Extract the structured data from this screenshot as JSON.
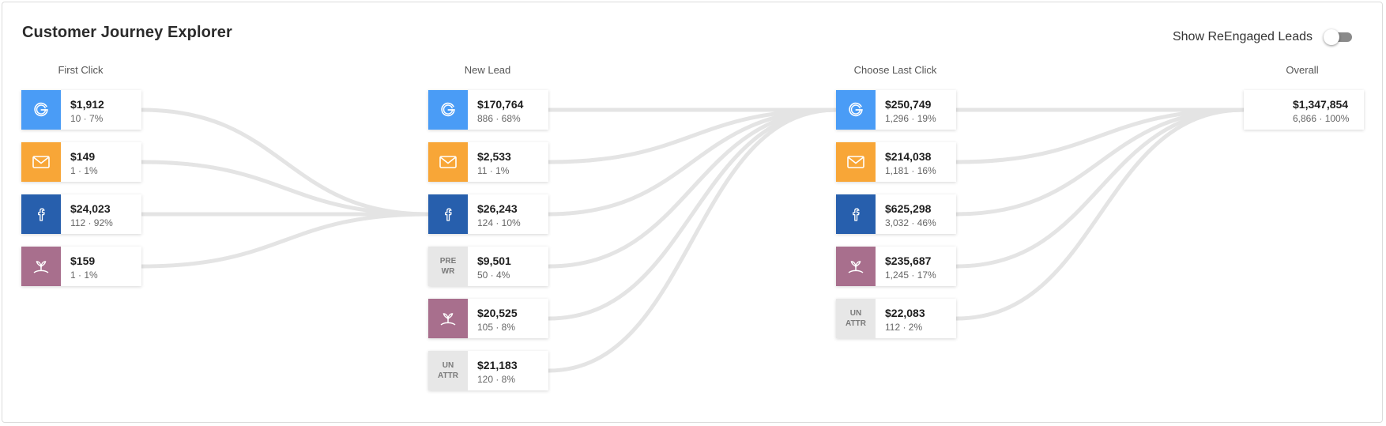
{
  "title": "Customer Journey Explorer",
  "toggle": {
    "label": "Show ReEngaged Leads",
    "state": "off"
  },
  "columns": [
    {
      "header": "First Click",
      "cards": [
        {
          "icon": "google-icon",
          "amount": "$1,912",
          "meta": "10 · 7%"
        },
        {
          "icon": "email-icon",
          "amount": "$149",
          "meta": "1 · 1%"
        },
        {
          "icon": "facebook-icon",
          "amount": "$24,023",
          "meta": "112 · 92%"
        },
        {
          "icon": "plant-icon",
          "amount": "$159",
          "meta": "1 · 1%"
        }
      ]
    },
    {
      "header": "New Lead",
      "cards": [
        {
          "icon": "google-icon",
          "amount": "$170,764",
          "meta": "886 · 68%"
        },
        {
          "icon": "email-icon",
          "amount": "$2,533",
          "meta": "11 · 1%"
        },
        {
          "icon": "facebook-icon",
          "amount": "$26,243",
          "meta": "124 · 10%"
        },
        {
          "icon": "text",
          "line1": "PRE",
          "line2": "WR",
          "amount": "$9,501",
          "meta": "50 · 4%"
        },
        {
          "icon": "plant-icon",
          "amount": "$20,525",
          "meta": "105 · 8%"
        },
        {
          "icon": "text",
          "line1": "UN",
          "line2": "ATTR",
          "amount": "$21,183",
          "meta": "120 · 8%"
        }
      ]
    },
    {
      "header": "Choose Last Click",
      "cards": [
        {
          "icon": "google-icon",
          "amount": "$250,749",
          "meta": "1,296 · 19%"
        },
        {
          "icon": "email-icon",
          "amount": "$214,038",
          "meta": "1,181 · 16%"
        },
        {
          "icon": "facebook-icon",
          "amount": "$625,298",
          "meta": "3,032 · 46%"
        },
        {
          "icon": "plant-icon",
          "amount": "$235,687",
          "meta": "1,245 · 17%"
        },
        {
          "icon": "text",
          "line1": "UN",
          "line2": "ATTR",
          "amount": "$22,083",
          "meta": "112 · 2%"
        }
      ]
    },
    {
      "header": "Overall",
      "cards": [
        {
          "icon": "none",
          "amount": "$1,347,854",
          "meta": "6,866 · 100%"
        }
      ]
    }
  ],
  "flows": [
    {
      "from": [
        0,
        0
      ],
      "to": [
        1,
        2
      ]
    },
    {
      "from": [
        0,
        1
      ],
      "to": [
        1,
        2
      ]
    },
    {
      "from": [
        0,
        2
      ],
      "to": [
        1,
        2
      ]
    },
    {
      "from": [
        0,
        3
      ],
      "to": [
        1,
        2
      ]
    },
    {
      "from": [
        1,
        0
      ],
      "to": [
        2,
        0
      ]
    },
    {
      "from": [
        1,
        1
      ],
      "to": [
        2,
        0
      ]
    },
    {
      "from": [
        1,
        2
      ],
      "to": [
        2,
        0
      ]
    },
    {
      "from": [
        1,
        3
      ],
      "to": [
        2,
        0
      ]
    },
    {
      "from": [
        1,
        4
      ],
      "to": [
        2,
        0
      ]
    },
    {
      "from": [
        1,
        5
      ],
      "to": [
        2,
        0
      ]
    },
    {
      "from": [
        2,
        0
      ],
      "to": [
        3,
        0
      ]
    },
    {
      "from": [
        2,
        1
      ],
      "to": [
        3,
        0
      ]
    },
    {
      "from": [
        2,
        2
      ],
      "to": [
        3,
        0
      ]
    },
    {
      "from": [
        2,
        3
      ],
      "to": [
        3,
        0
      ]
    },
    {
      "from": [
        2,
        4
      ],
      "to": [
        3,
        0
      ]
    }
  ],
  "colors": {
    "google": "#4a9cf6",
    "email": "#f8a637",
    "facebook": "#275fad",
    "plant": "#a86f8d",
    "unattributed": "#e7e7e7",
    "flow": "#e4e4e4"
  }
}
